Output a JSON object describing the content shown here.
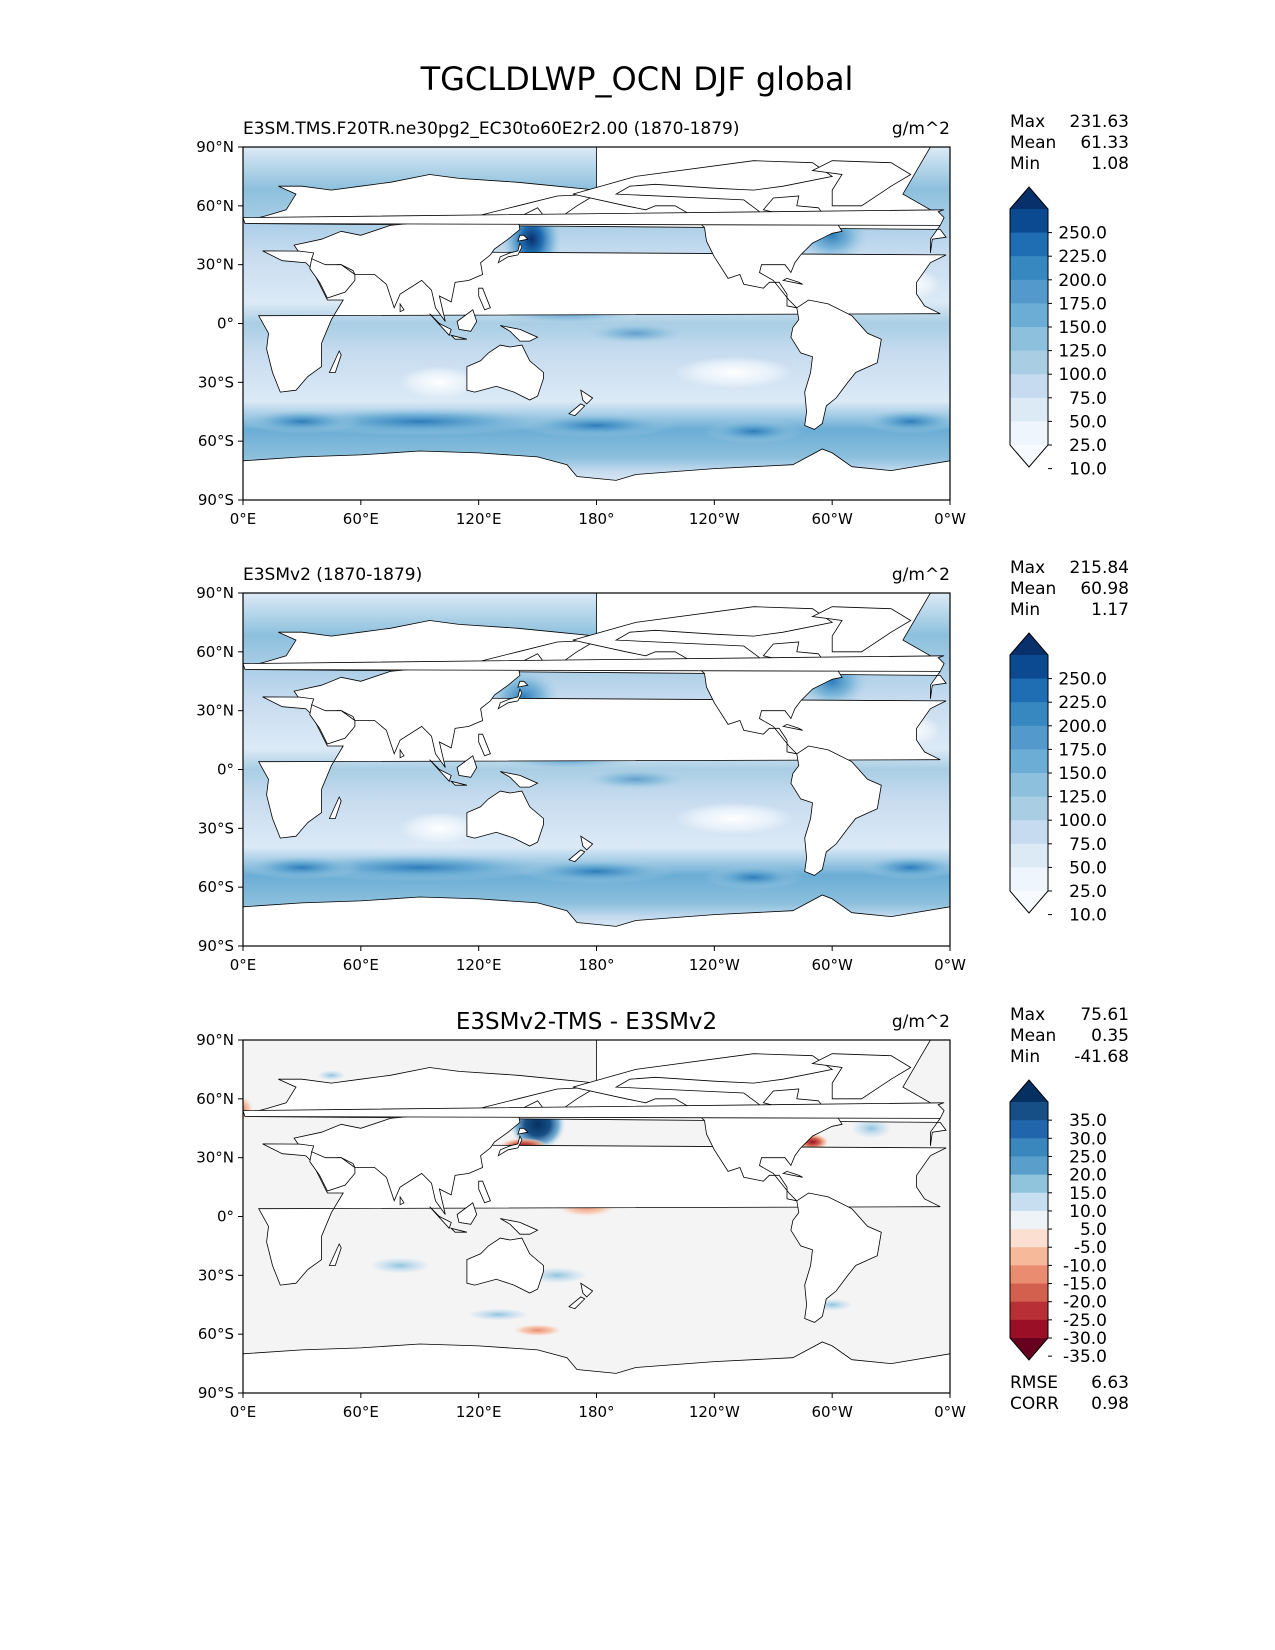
{
  "chart_data": {
    "title": "TGCLDLWP_OCN DJF global",
    "type": "heatmap",
    "xticks": [
      "0°E",
      "60°E",
      "120°E",
      "180°",
      "120°W",
      "60°W",
      "0°W"
    ],
    "yticks": [
      "90°N",
      "60°N",
      "30°N",
      "0°",
      "30°S",
      "60°S",
      "90°S"
    ],
    "lon_range": [
      0,
      360
    ],
    "lat_range": [
      -90,
      90
    ],
    "panels": [
      {
        "id": "test",
        "title": "E3SM.TMS.F20TR.ne30pg2_EC30to60E2r2.00 (1870-1879)",
        "title_align": "left",
        "units": "g/m^2",
        "stats": [
          {
            "label": "Max",
            "value": "231.63"
          },
          {
            "label": "Mean",
            "value": "61.33"
          },
          {
            "label": "Min",
            "value": "1.08"
          }
        ],
        "colorbar_labels": [
          "250.0",
          "225.0",
          "200.0",
          "175.0",
          "150.0",
          "125.0",
          "100.0",
          "75.0",
          "50.0",
          "25.0",
          "10.0"
        ],
        "colorbar_colors": [
          "#08306b",
          "#0b4a91",
          "#1f6eb3",
          "#3787c0",
          "#5499cb",
          "#6badd5",
          "#8cc0dd",
          "#a9cee4",
          "#c6dbef",
          "#dceaf6",
          "#eef5fc",
          "#f7fbff"
        ],
        "features": [
          {
            "name": "kuroshio",
            "lon": 147,
            "lat": 43,
            "level": 10
          },
          {
            "name": "gulf-stream",
            "lon": 300,
            "lat": 45,
            "level": 8
          },
          {
            "name": "southern-ocean",
            "lon": 90,
            "lat": -50,
            "level": 7
          }
        ]
      },
      {
        "id": "reference",
        "title": "E3SMv2 (1870-1879)",
        "title_align": "left",
        "units": "g/m^2",
        "stats": [
          {
            "label": "Max",
            "value": "215.84"
          },
          {
            "label": "Mean",
            "value": "60.98"
          },
          {
            "label": "Min",
            "value": "1.17"
          }
        ],
        "colorbar_labels": [
          "250.0",
          "225.0",
          "200.0",
          "175.0",
          "150.0",
          "125.0",
          "100.0",
          "75.0",
          "50.0",
          "25.0",
          "10.0"
        ],
        "colorbar_colors": [
          "#08306b",
          "#0b4a91",
          "#1f6eb3",
          "#3787c0",
          "#5499cb",
          "#6badd5",
          "#8cc0dd",
          "#a9cee4",
          "#c6dbef",
          "#dceaf6",
          "#eef5fc",
          "#f7fbff"
        ],
        "features": [
          {
            "name": "kuroshio",
            "lon": 143,
            "lat": 37,
            "level": 8
          },
          {
            "name": "gulf-stream",
            "lon": 300,
            "lat": 45,
            "level": 8
          },
          {
            "name": "southern-ocean",
            "lon": 90,
            "lat": -50,
            "level": 7
          }
        ]
      },
      {
        "id": "difference",
        "title": "E3SMv2-TMS - E3SMv2",
        "title_align": "center",
        "units": "g/m^2",
        "stats": [
          {
            "label": "Max",
            "value": "75.61"
          },
          {
            "label": "Mean",
            "value": "0.35"
          },
          {
            "label": "Min",
            "value": "-41.68"
          }
        ],
        "colorbar_labels": [
          "35.0",
          "30.0",
          "25.0",
          "20.0",
          "15.0",
          "10.0",
          "5.0",
          "-5.0",
          "-10.0",
          "-15.0",
          "-20.0",
          "-25.0",
          "-30.0",
          "-35.0"
        ],
        "colorbar_colors": [
          "#053061",
          "#164f86",
          "#2166ac",
          "#3a87bd",
          "#5a9fcc",
          "#90c4dd",
          "#c6def0",
          "#eef3f7",
          "#fbe0d2",
          "#f6b99a",
          "#ea8c70",
          "#d3604e",
          "#b82f36",
          "#9a0f26",
          "#67001f"
        ],
        "features": [
          {
            "name": "kuroshio-positive",
            "lon": 150,
            "lat": 47,
            "value": 35
          },
          {
            "name": "kuroshio-negative",
            "lon": 143,
            "lat": 36,
            "value": -35
          },
          {
            "name": "gulf-stream-negative",
            "lon": 290,
            "lat": 38,
            "value": -20
          }
        ],
        "extra_stats": [
          {
            "label": "RMSE",
            "value": "6.63"
          },
          {
            "label": "CORR",
            "value": "0.98"
          }
        ]
      }
    ]
  }
}
